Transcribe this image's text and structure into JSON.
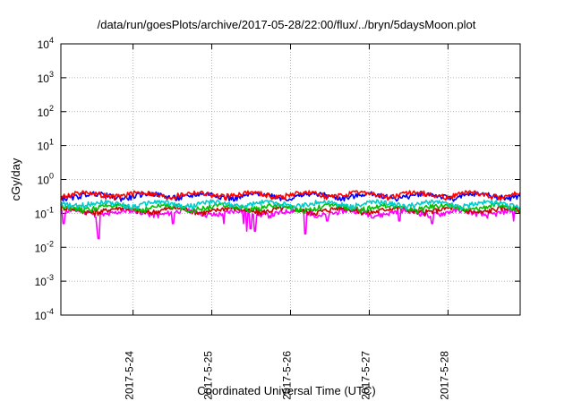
{
  "chart_data": {
    "type": "line",
    "title": "/data/run/goesPlots/archive/2017-05-28/22:00/flux/../bryn/5daysMoon.plot",
    "xlabel": "Coordinated Universal Time (UTC)",
    "ylabel": "cGy/day",
    "y_scale": "log",
    "ylim": [
      0.0001,
      10000
    ],
    "y_ticks": [
      {
        "base": "10",
        "exp": "-4"
      },
      {
        "base": "10",
        "exp": "-3"
      },
      {
        "base": "10",
        "exp": "-2"
      },
      {
        "base": "10",
        "exp": "-1"
      },
      {
        "base": "10",
        "exp": "0"
      },
      {
        "base": "10",
        "exp": "1"
      },
      {
        "base": "10",
        "exp": "2"
      },
      {
        "base": "10",
        "exp": "3"
      },
      {
        "base": "10",
        "exp": "4"
      }
    ],
    "xlim": [
      "2017-05-23 02:00",
      "2017-05-28 22:00"
    ],
    "x_ticks": [
      "2017-5-24",
      "2017-5-25",
      "2017-5-26",
      "2017-5-27",
      "2017-5-28"
    ],
    "grid": true,
    "series": [
      {
        "color": "#ff00ff",
        "base": 0.105,
        "dips": [
          [
            0.46,
            0.035
          ],
          [
            0.48,
            0.018
          ],
          [
            0.03,
            0.05
          ],
          [
            1.42,
            0.05
          ],
          [
            2.07,
            0.05
          ],
          [
            2.32,
            0.05
          ],
          [
            2.36,
            0.03
          ],
          [
            2.41,
            0.035
          ],
          [
            2.47,
            0.03
          ],
          [
            3.1,
            0.025
          ],
          [
            3.38,
            0.06
          ],
          [
            4.3,
            0.06
          ],
          [
            4.72,
            0.05
          ],
          [
            5.75,
            0.06
          ]
        ]
      },
      {
        "color": "#cc0000",
        "base": 0.125,
        "dips": []
      },
      {
        "color": "#00c000",
        "base": 0.15,
        "dips": []
      },
      {
        "color": "#00cccc",
        "base": 0.19,
        "dips": []
      },
      {
        "color": "#0000ff",
        "base": 0.33,
        "dips": []
      },
      {
        "color": "#ff0000",
        "base": 0.36,
        "dips": []
      }
    ]
  }
}
